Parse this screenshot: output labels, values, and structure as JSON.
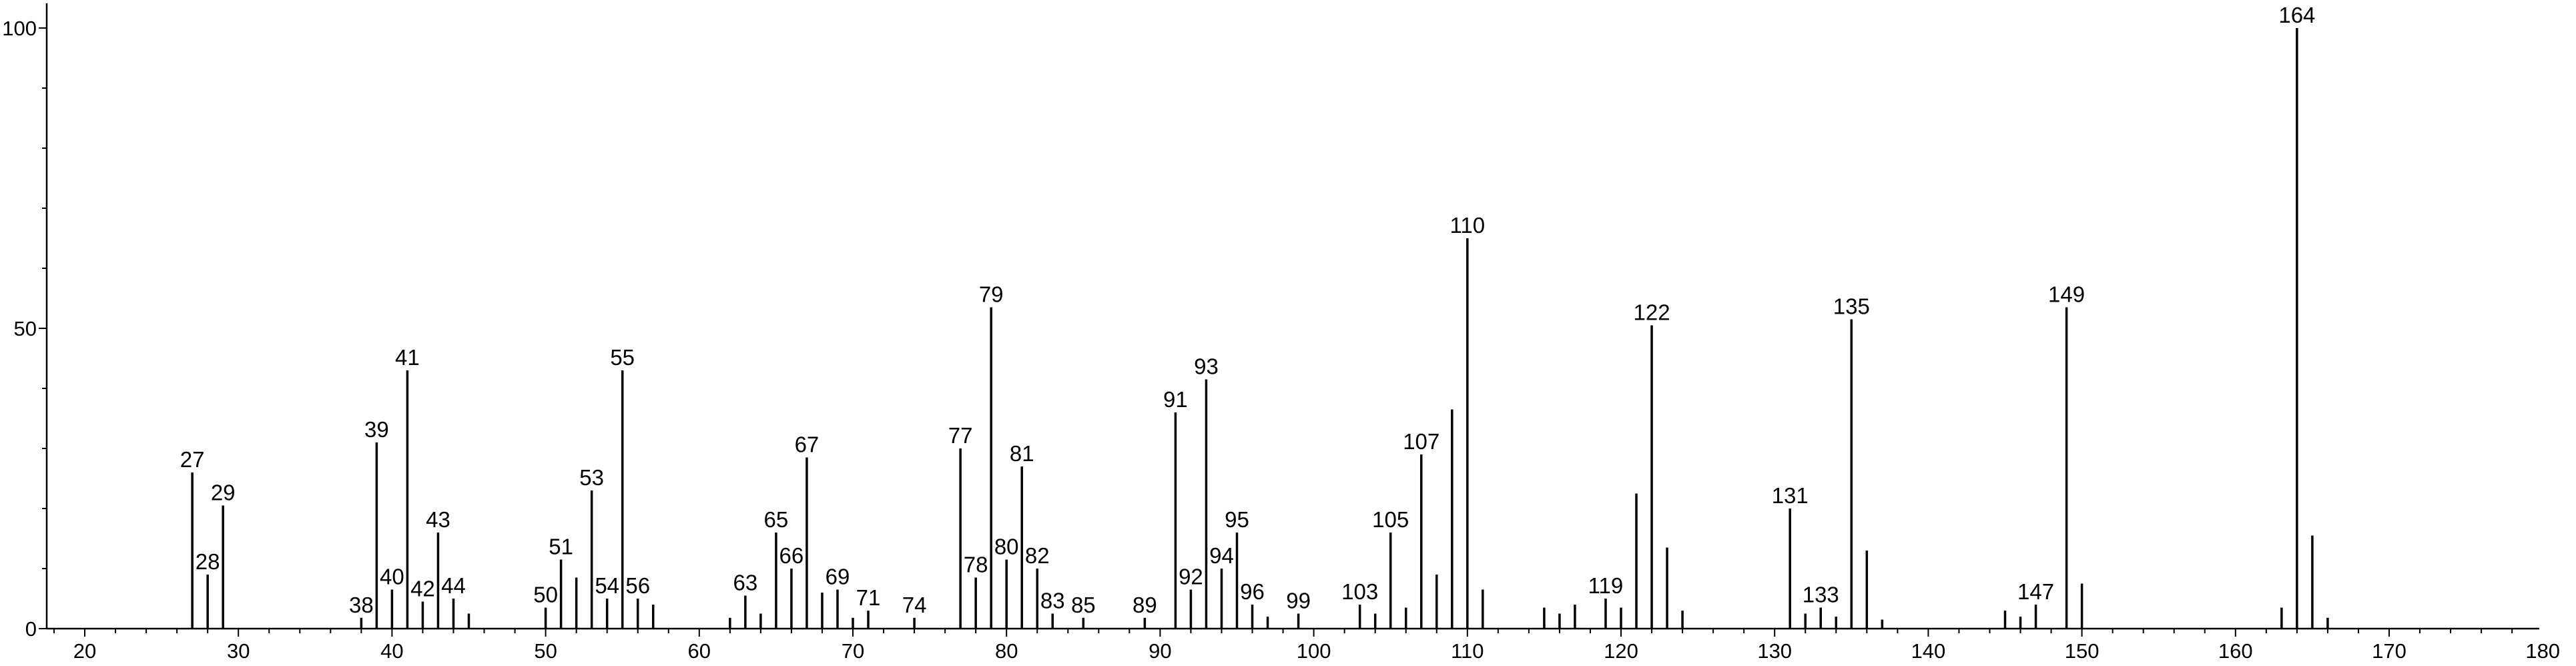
{
  "chart_data": {
    "type": "bar",
    "title": "",
    "xlabel": "",
    "ylabel": "",
    "xlim": [
      17.5,
      182
    ],
    "ylim": [
      0,
      103
    ],
    "x_ticks": [
      20,
      30,
      40,
      50,
      60,
      70,
      80,
      90,
      100,
      110,
      120,
      130,
      140,
      150,
      160,
      170,
      180
    ],
    "y_ticks": [
      0,
      50,
      100
    ],
    "grid": false,
    "legend": "none",
    "bar_color": "#000000",
    "peaks": [
      {
        "x": 27,
        "y": 26,
        "label": "27"
      },
      {
        "x": 28,
        "y": 9,
        "label": "28"
      },
      {
        "x": 29,
        "y": 20.5,
        "label": "29"
      },
      {
        "x": 38,
        "y": 1.8,
        "label": "38"
      },
      {
        "x": 39,
        "y": 31,
        "label": "39"
      },
      {
        "x": 40,
        "y": 6.5,
        "label": "40"
      },
      {
        "x": 41,
        "y": 43,
        "label": "41"
      },
      {
        "x": 42,
        "y": 4.5,
        "label": "42"
      },
      {
        "x": 43,
        "y": 16,
        "label": "43"
      },
      {
        "x": 44,
        "y": 5,
        "label": "44"
      },
      {
        "x": 45,
        "y": 2.5,
        "label": ""
      },
      {
        "x": 50,
        "y": 3.5,
        "label": "50"
      },
      {
        "x": 51,
        "y": 11.5,
        "label": "51"
      },
      {
        "x": 52,
        "y": 8.5,
        "label": ""
      },
      {
        "x": 53,
        "y": 23,
        "label": "53"
      },
      {
        "x": 54,
        "y": 5,
        "label": "54"
      },
      {
        "x": 55,
        "y": 43,
        "label": "55"
      },
      {
        "x": 56,
        "y": 5,
        "label": "56"
      },
      {
        "x": 57,
        "y": 4,
        "label": ""
      },
      {
        "x": 62,
        "y": 1.8,
        "label": ""
      },
      {
        "x": 63,
        "y": 5.5,
        "label": "63"
      },
      {
        "x": 64,
        "y": 2.5,
        "label": ""
      },
      {
        "x": 65,
        "y": 16,
        "label": "65"
      },
      {
        "x": 66,
        "y": 10,
        "label": "66"
      },
      {
        "x": 67,
        "y": 28.5,
        "label": "67"
      },
      {
        "x": 68,
        "y": 6,
        "label": ""
      },
      {
        "x": 69,
        "y": 6.5,
        "label": "69"
      },
      {
        "x": 70,
        "y": 1.8,
        "label": ""
      },
      {
        "x": 71,
        "y": 3,
        "label": "71"
      },
      {
        "x": 74,
        "y": 1.8,
        "label": "74"
      },
      {
        "x": 77,
        "y": 30,
        "label": "77"
      },
      {
        "x": 78,
        "y": 8.5,
        "label": "78"
      },
      {
        "x": 79,
        "y": 53.5,
        "label": "79"
      },
      {
        "x": 80,
        "y": 11.5,
        "label": "80"
      },
      {
        "x": 81,
        "y": 27,
        "label": "81"
      },
      {
        "x": 82,
        "y": 10,
        "label": "82"
      },
      {
        "x": 83,
        "y": 2.5,
        "label": "83"
      },
      {
        "x": 85,
        "y": 1.8,
        "label": "85"
      },
      {
        "x": 89,
        "y": 1.8,
        "label": "89"
      },
      {
        "x": 91,
        "y": 36,
        "label": "91"
      },
      {
        "x": 92,
        "y": 6.5,
        "label": "92"
      },
      {
        "x": 93,
        "y": 41.5,
        "label": "93"
      },
      {
        "x": 94,
        "y": 10,
        "label": "94"
      },
      {
        "x": 95,
        "y": 16,
        "label": "95"
      },
      {
        "x": 96,
        "y": 4,
        "label": "96"
      },
      {
        "x": 97,
        "y": 2,
        "label": ""
      },
      {
        "x": 99,
        "y": 2.5,
        "label": "99"
      },
      {
        "x": 103,
        "y": 4,
        "label": "103"
      },
      {
        "x": 104,
        "y": 2.5,
        "label": ""
      },
      {
        "x": 105,
        "y": 16,
        "label": "105"
      },
      {
        "x": 106,
        "y": 3.5,
        "label": ""
      },
      {
        "x": 107,
        "y": 29,
        "label": "107"
      },
      {
        "x": 108,
        "y": 9,
        "label": ""
      },
      {
        "x": 109,
        "y": 36.5,
        "label": ""
      },
      {
        "x": 110,
        "y": 65,
        "label": "110"
      },
      {
        "x": 111,
        "y": 6.5,
        "label": ""
      },
      {
        "x": 115,
        "y": 3.5,
        "label": ""
      },
      {
        "x": 116,
        "y": 2.5,
        "label": ""
      },
      {
        "x": 117,
        "y": 4,
        "label": ""
      },
      {
        "x": 119,
        "y": 5,
        "label": "119"
      },
      {
        "x": 120,
        "y": 3.5,
        "label": ""
      },
      {
        "x": 121,
        "y": 22.5,
        "label": ""
      },
      {
        "x": 122,
        "y": 50.5,
        "label": "122"
      },
      {
        "x": 123,
        "y": 13.5,
        "label": ""
      },
      {
        "x": 124,
        "y": 3,
        "label": ""
      },
      {
        "x": 131,
        "y": 20,
        "label": "131"
      },
      {
        "x": 132,
        "y": 2.5,
        "label": ""
      },
      {
        "x": 133,
        "y": 3.5,
        "label": "133"
      },
      {
        "x": 134,
        "y": 2,
        "label": ""
      },
      {
        "x": 135,
        "y": 51.5,
        "label": "135"
      },
      {
        "x": 136,
        "y": 13,
        "label": ""
      },
      {
        "x": 137,
        "y": 1.5,
        "label": ""
      },
      {
        "x": 145,
        "y": 3,
        "label": ""
      },
      {
        "x": 146,
        "y": 2,
        "label": ""
      },
      {
        "x": 147,
        "y": 4,
        "label": "147"
      },
      {
        "x": 149,
        "y": 53.5,
        "label": "149"
      },
      {
        "x": 150,
        "y": 7.5,
        "label": ""
      },
      {
        "x": 163,
        "y": 3.5,
        "label": ""
      },
      {
        "x": 164,
        "y": 100,
        "label": "164"
      },
      {
        "x": 165,
        "y": 15.5,
        "label": ""
      },
      {
        "x": 166,
        "y": 1.8,
        "label": ""
      }
    ]
  }
}
